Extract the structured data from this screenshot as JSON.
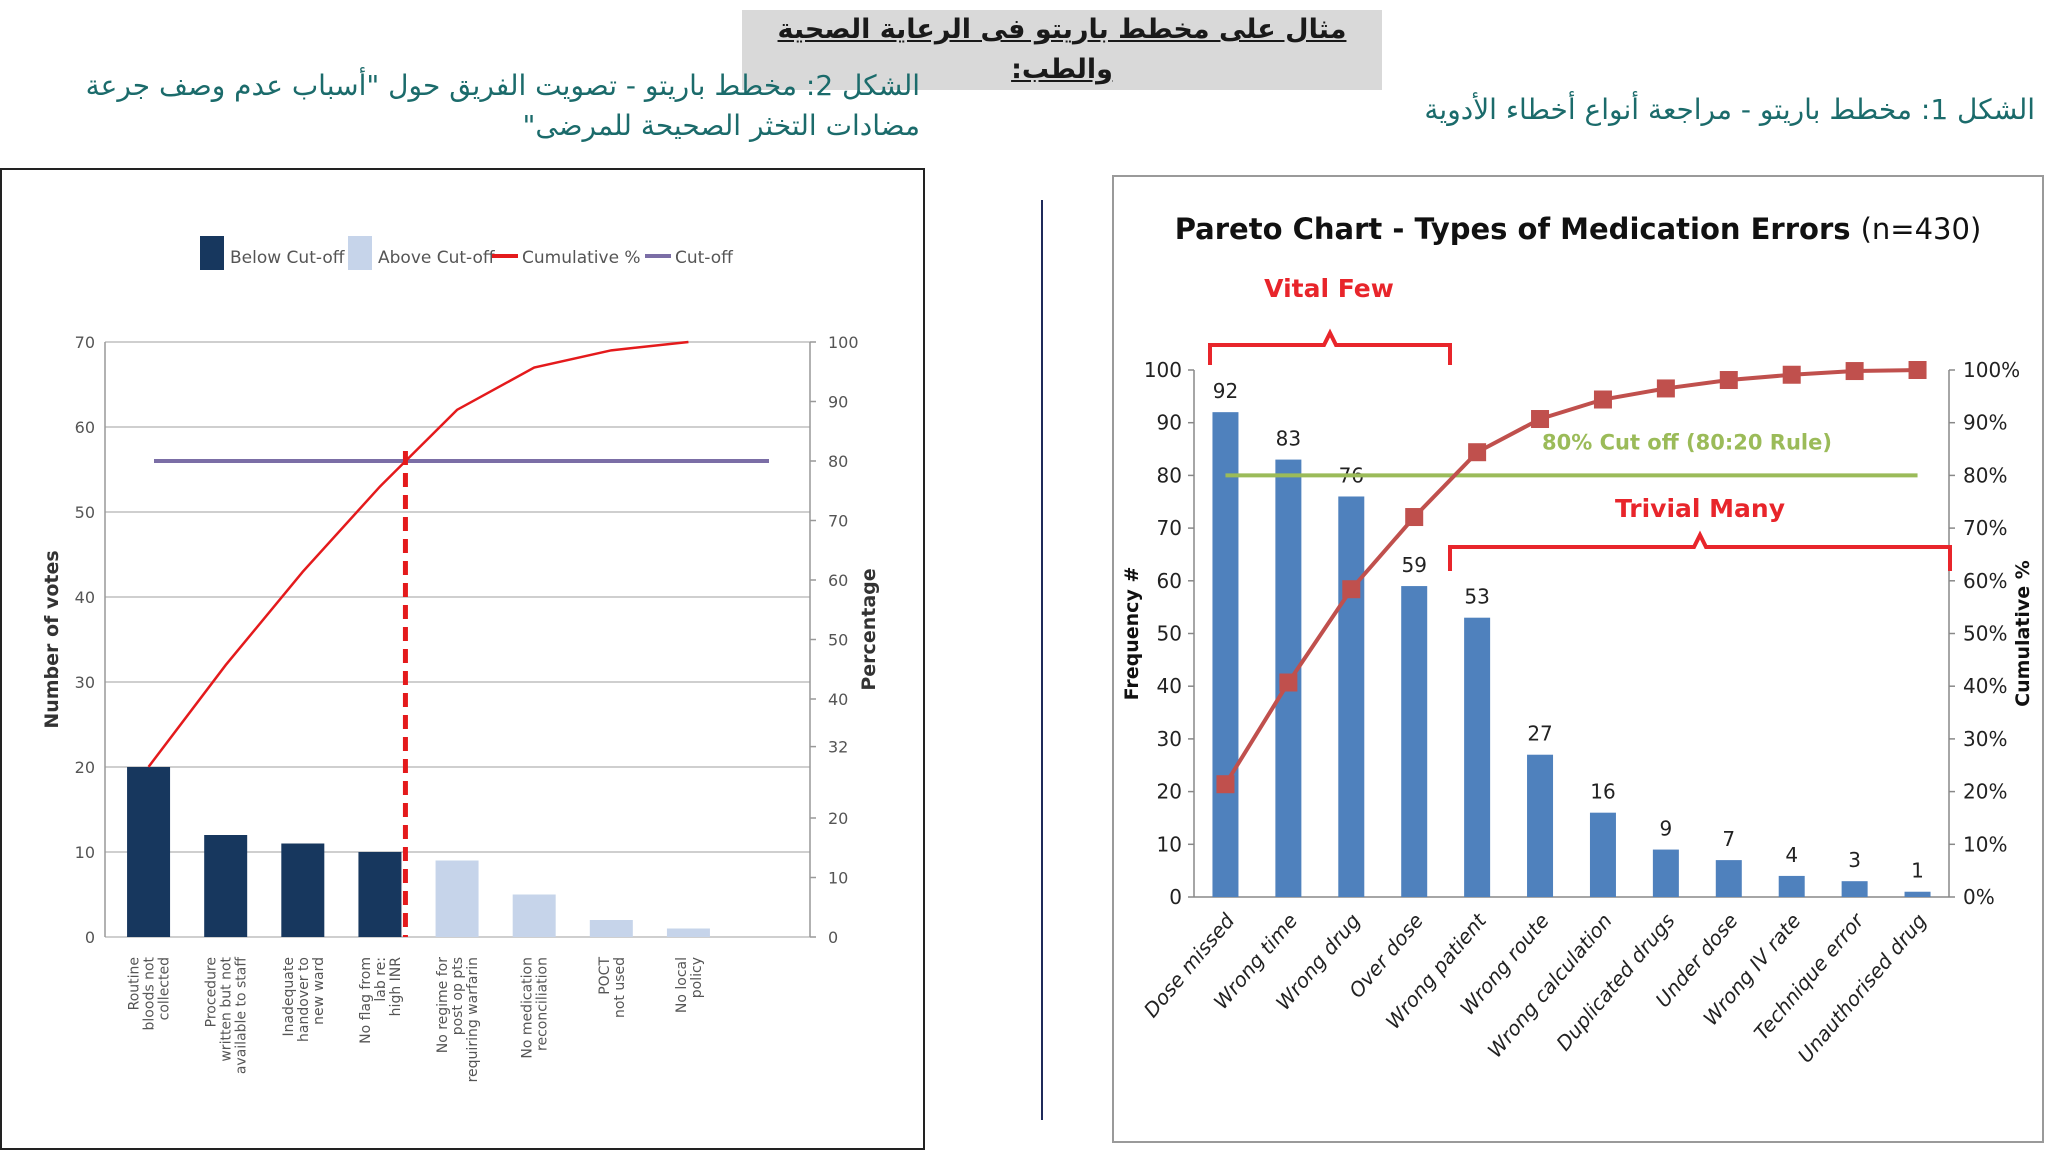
{
  "page": {
    "title": "مثال على مخطط باريتو فى الرعاية الصحية والطب:",
    "figure2_caption": "الشكل 2: مخطط باريتو - تصويت الفريق حول \"أسباب عدم وصف جرعة مضادات التخثر الصحيحة للمرضى\"",
    "figure1_caption": "الشكل 1: مخطط باريتو - مراجعة أنواع أخطاء الأدوية"
  },
  "chart_data": [
    {
      "type": "bar",
      "title": "",
      "xlabel": "",
      "ylabel": "Number of votes",
      "y2label": "Percentage",
      "ylim": [
        0,
        70
      ],
      "y2lim": [
        0,
        100
      ],
      "yticks": [
        "0",
        "10",
        "20",
        "30",
        "40",
        "50",
        "60",
        "70"
      ],
      "y2ticks": [
        "0",
        "10",
        "20",
        "32",
        "40",
        "50",
        "60",
        "70",
        "80",
        "90",
        "100"
      ],
      "legend": {
        "position": "top",
        "items": [
          {
            "label": "Below Cut-off",
            "color": "#17375e",
            "kind": "box"
          },
          {
            "label": "Above Cut-off",
            "color": "#c6d4ea",
            "kind": "box"
          },
          {
            "label": "Cumulative %",
            "color": "#e41a1c",
            "kind": "line"
          },
          {
            "label": "Cut-off",
            "color": "#7b6ea6",
            "kind": "line"
          }
        ]
      },
      "categories": [
        [
          "Routine",
          "bloods not",
          "collected"
        ],
        [
          "Procedure",
          "written but not",
          "available to staff"
        ],
        [
          "Inadequate",
          "handover to",
          "new ward"
        ],
        [
          "No flag from",
          "lab re:",
          "high INR"
        ],
        [
          "No regime for",
          "post op pts",
          "requiring warfarin"
        ],
        [
          "No medication",
          "reconciliation"
        ],
        [
          "POCT",
          "not used"
        ],
        [
          "No local",
          "policy"
        ]
      ],
      "values": [
        20,
        12,
        11,
        10,
        9,
        5,
        2,
        1
      ],
      "bar_colors": [
        "#17375e",
        "#17375e",
        "#17375e",
        "#17375e",
        "#c6d4ea",
        "#c6d4ea",
        "#c6d4ea",
        "#c6d4ea"
      ],
      "cumulative_percent": [
        28.6,
        45.7,
        61.4,
        75.7,
        88.6,
        95.7,
        98.6,
        100
      ],
      "cutoff_percent": 80,
      "cutoff_index": 3,
      "grid": true
    },
    {
      "type": "bar",
      "title": "Pareto Chart - Types of Medication Errors",
      "title_suffix": "(n=430)",
      "xlabel": "",
      "ylabel": "Frequency #",
      "y2label": "Cumulative %",
      "ylim": [
        0,
        100
      ],
      "y2lim": [
        0,
        100
      ],
      "yticks": [
        "0",
        "10",
        "20",
        "30",
        "40",
        "50",
        "60",
        "70",
        "80",
        "90",
        "100"
      ],
      "y2ticks": [
        "0%",
        "10%",
        "20%",
        "30%",
        "40%",
        "50%",
        "60%",
        "70%",
        "80%",
        "90%",
        "100%"
      ],
      "categories": [
        "Dose missed",
        "Wrong time",
        "Wrong drug",
        "Over dose",
        "Wrong patient",
        "Wrong route",
        "Wrong calculation",
        "Duplicated drugs",
        "Under dose",
        "Wrong IV rate",
        "Technique error",
        "Unauthorised drug"
      ],
      "values": [
        92,
        83,
        76,
        59,
        53,
        27,
        16,
        9,
        7,
        4,
        3,
        1
      ],
      "value_labels": [
        "92",
        "83",
        "76",
        "59",
        "53",
        "27",
        "16",
        "9",
        "7",
        "4",
        "3",
        "1"
      ],
      "cumulative_percent": [
        21.4,
        40.7,
        58.4,
        72.1,
        84.4,
        90.7,
        94.4,
        96.5,
        98.1,
        99.1,
        99.8,
        100
      ],
      "bar_color": "#4f81bd",
      "line_color": "#c0504d",
      "cutoff_percent": 80,
      "cutoff_color": "#9bbb59",
      "annotations": {
        "vital_few": "Vital Few",
        "trivial_many": "Trivial Many",
        "cutoff_label": "80% Cut off  (80:20 Rule)"
      },
      "grid": false
    }
  ]
}
